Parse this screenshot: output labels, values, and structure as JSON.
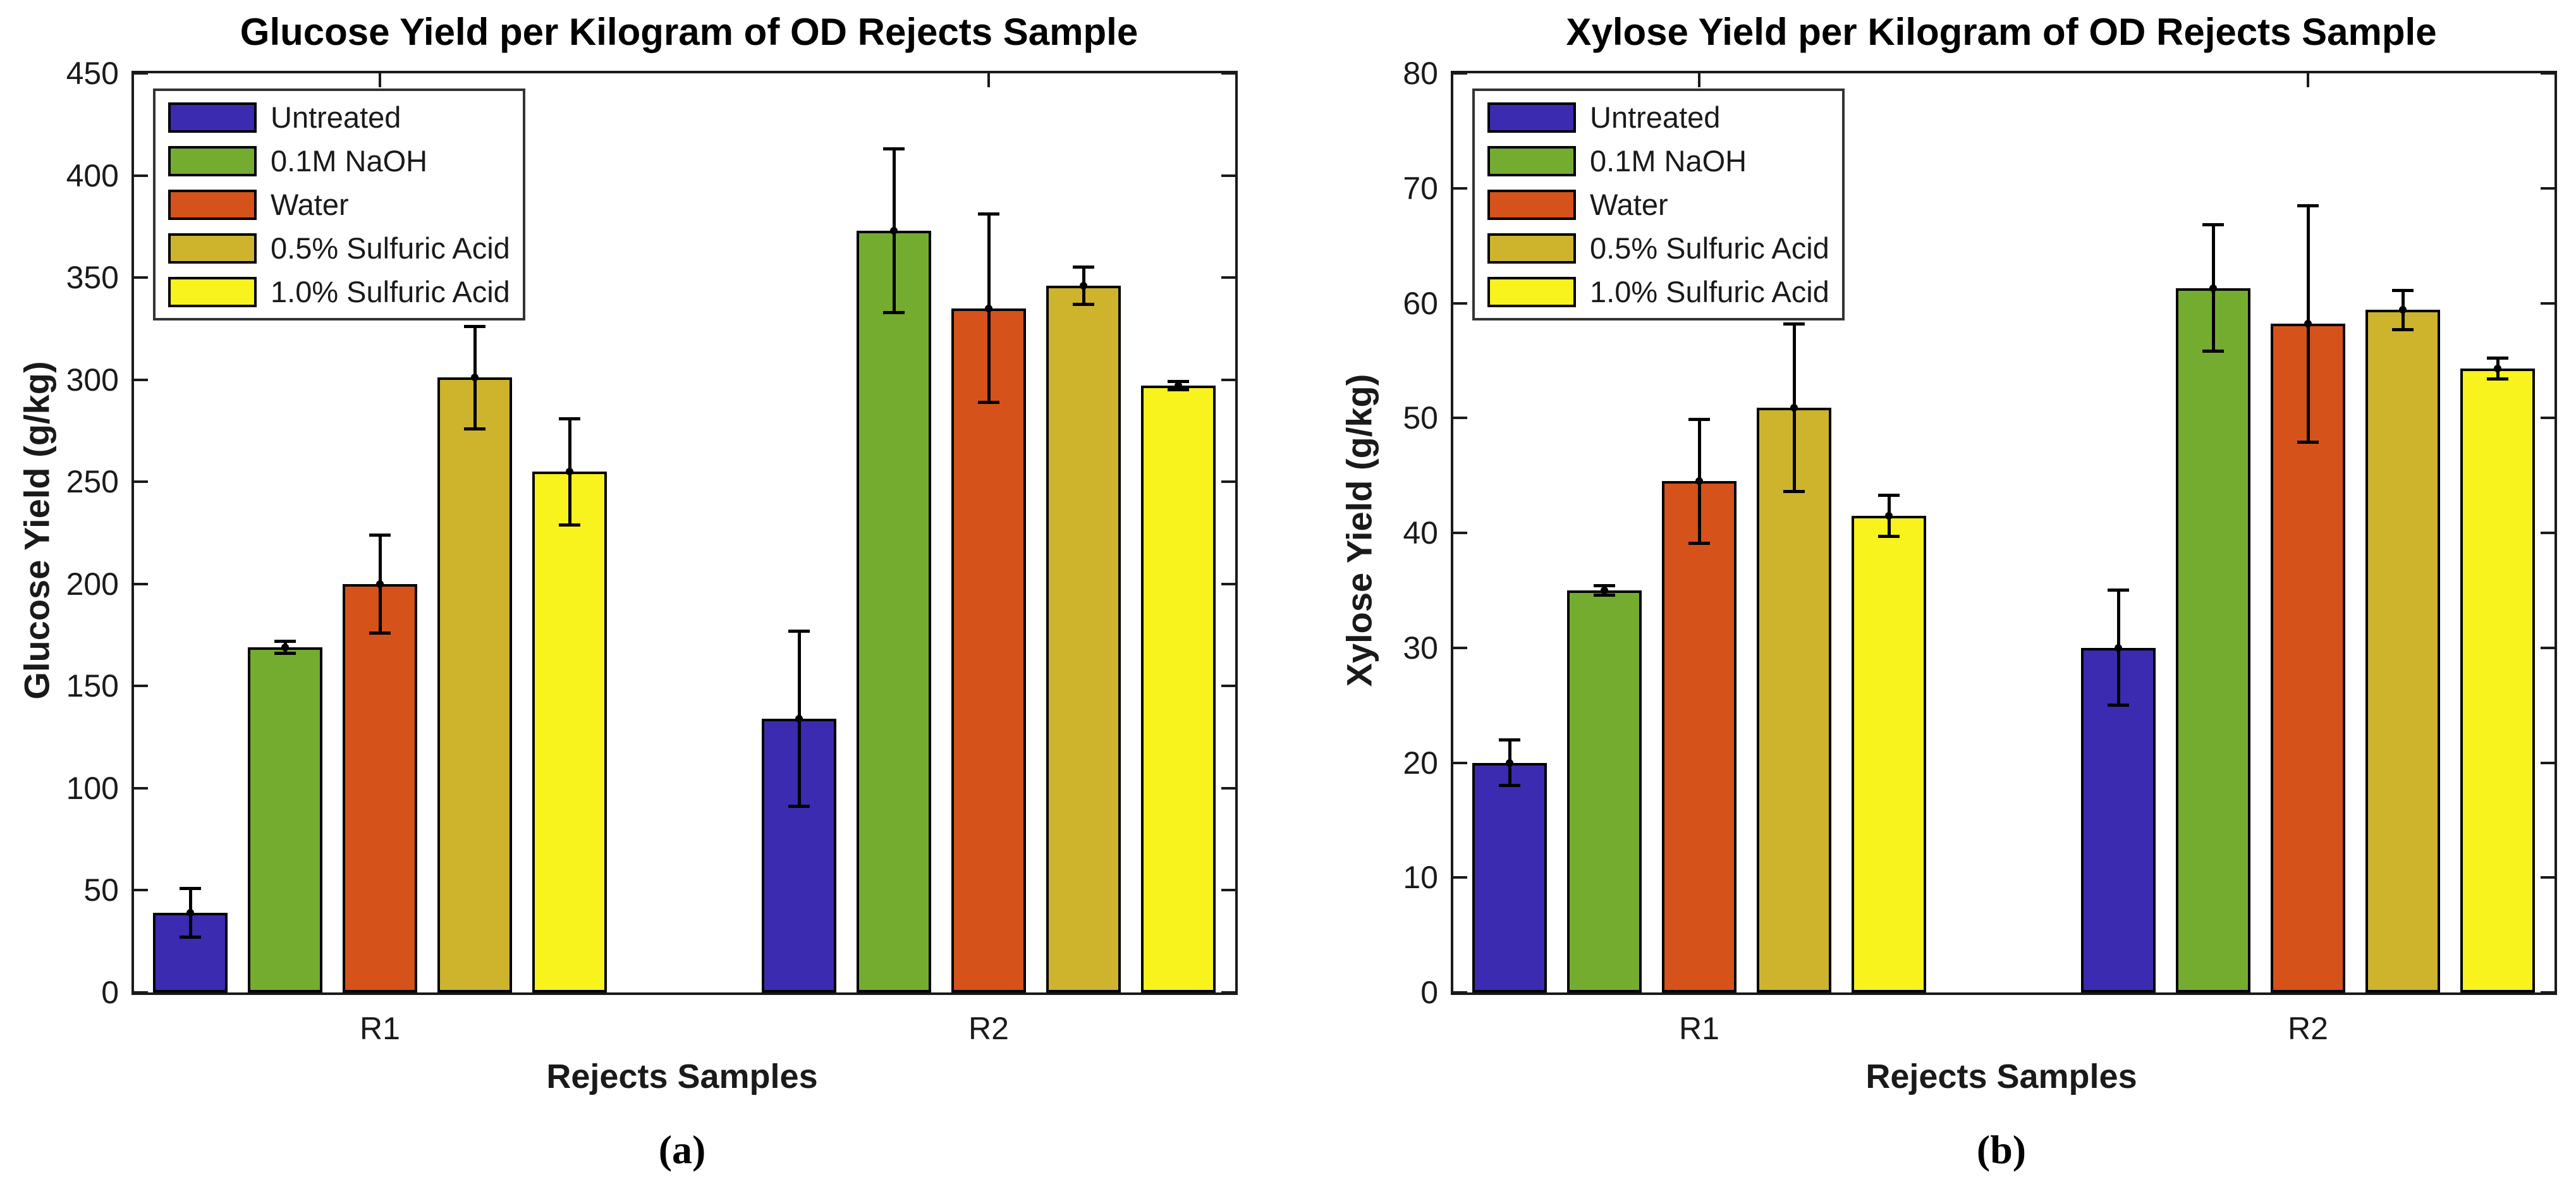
{
  "figure": {
    "background": "#ffffff",
    "axis_color": "#1a1a1a"
  },
  "chart_data": [
    {
      "type": "bar",
      "title": "Glucose Yield per Kilogram of OD Rejects Sample",
      "xlabel": "Rejects Samples",
      "ylabel": "Glucose Yield (g/kg)",
      "caption": "(a)",
      "categories": [
        "R1",
        "R2"
      ],
      "ylim": [
        0,
        450
      ],
      "yticks": [
        0,
        50,
        100,
        150,
        200,
        250,
        300,
        350,
        400,
        450
      ],
      "grid": false,
      "legend_position": "top-left",
      "error_bars": true,
      "series": [
        {
          "name": "Untreated",
          "color": "#3B2BB0",
          "values": [
            39,
            134
          ],
          "errors": [
            12,
            43
          ]
        },
        {
          "name": "0.1M NaOH",
          "color": "#74AC30",
          "values": [
            169,
            373
          ],
          "errors": [
            3,
            40
          ]
        },
        {
          "name": "Water",
          "color": "#D5521B",
          "values": [
            200,
            335
          ],
          "errors": [
            24,
            46
          ]
        },
        {
          "name": "0.5% Sulfuric Acid",
          "color": "#CDB42C",
          "values": [
            301,
            346
          ],
          "errors": [
            25,
            9
          ]
        },
        {
          "name": "1.0% Sulfuric Acid",
          "color": "#F8F21D",
          "values": [
            255,
            297
          ],
          "errors": [
            26,
            2
          ]
        }
      ]
    },
    {
      "type": "bar",
      "title": "Xylose Yield per Kilogram of OD Rejects Sample",
      "xlabel": "Rejects Samples",
      "ylabel": "Xylose Yield (g/kg)",
      "caption": "(b)",
      "categories": [
        "R1",
        "R2"
      ],
      "ylim": [
        0,
        80
      ],
      "yticks": [
        0,
        10,
        20,
        30,
        40,
        50,
        60,
        70,
        80
      ],
      "grid": false,
      "legend_position": "top-left",
      "error_bars": true,
      "series": [
        {
          "name": "Untreated",
          "color": "#3B2BB0",
          "values": [
            20,
            30
          ],
          "errors": [
            2,
            5
          ]
        },
        {
          "name": "0.1M NaOH",
          "color": "#74AC30",
          "values": [
            35,
            61.3
          ],
          "errors": [
            0.4,
            5.5
          ]
        },
        {
          "name": "Water",
          "color": "#D5521B",
          "values": [
            44.5,
            58.2
          ],
          "errors": [
            5.4,
            10.3
          ]
        },
        {
          "name": "0.5% Sulfuric Acid",
          "color": "#CDB42C",
          "values": [
            50.9,
            59.4
          ],
          "errors": [
            7.3,
            1.7
          ]
        },
        {
          "name": "1.0% Sulfuric Acid",
          "color": "#F8F21D",
          "values": [
            41.5,
            54.3
          ],
          "errors": [
            1.8,
            0.9
          ]
        }
      ]
    }
  ]
}
